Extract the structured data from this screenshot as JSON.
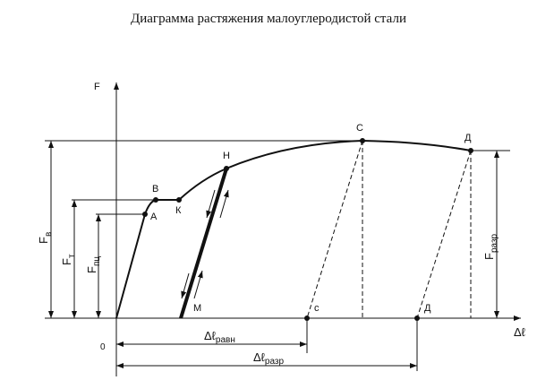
{
  "title": "Диаграмма растяжения малоуглеродистой стали",
  "axes": {
    "y": "F",
    "x": "Δℓ",
    "origin": "0"
  },
  "points": {
    "A": "А",
    "B": "В",
    "K": "К",
    "H": "Н",
    "C": "С",
    "D": "Д",
    "M": "М",
    "c": "с",
    "d": "Д"
  },
  "forces": {
    "Fv": {
      "main": "F",
      "sub": "в"
    },
    "Ft": {
      "main": "F",
      "sub": "т"
    },
    "Fpc": {
      "main": "F",
      "sub": "пц"
    },
    "Frazr": {
      "main": "F",
      "sub": "разр"
    }
  },
  "elongations": {
    "ravn": {
      "main": "Δℓ",
      "sub": "равн"
    },
    "razr": {
      "main": "Δℓ",
      "sub": "разр"
    }
  }
}
